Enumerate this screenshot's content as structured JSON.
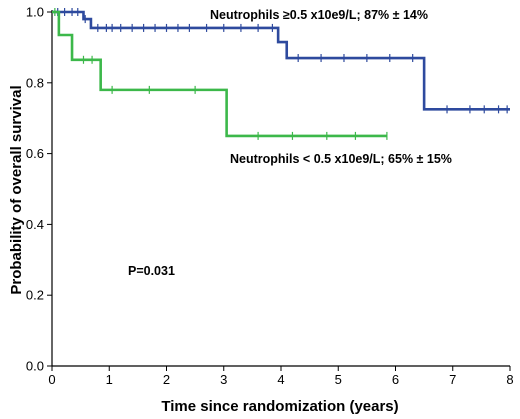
{
  "chart_data": {
    "type": "line",
    "step": true,
    "xlabel": "Time since randomization (years)",
    "ylabel": "Probability of overall survival",
    "xlim": [
      0,
      8
    ],
    "ylim": [
      0,
      1.0
    ],
    "x_ticks": [
      "0",
      "1",
      "2",
      "3",
      "4",
      "5",
      "6",
      "7",
      "8"
    ],
    "y_ticks": [
      "0.0",
      "0.2",
      "0.4",
      "0.6",
      "0.8",
      "1.0"
    ],
    "grid": false,
    "legend": "none",
    "series": [
      {
        "name": "Neutrophils ≥0.5 x10e9/L; 87% ± 14%",
        "color": "#2e4a9e",
        "steps": [
          [
            0,
            1.0
          ],
          [
            0.55,
            0.98
          ],
          [
            0.68,
            0.955
          ],
          [
            3.95,
            0.915
          ],
          [
            4.1,
            0.87
          ],
          [
            6.5,
            0.725
          ],
          [
            8.0,
            0.725
          ]
        ],
        "censored": [
          [
            0.1,
            1.0
          ],
          [
            0.22,
            1.0
          ],
          [
            0.35,
            1.0
          ],
          [
            0.45,
            1.0
          ],
          [
            0.58,
            0.98
          ],
          [
            0.8,
            0.955
          ],
          [
            0.95,
            0.955
          ],
          [
            1.05,
            0.955
          ],
          [
            1.2,
            0.955
          ],
          [
            1.4,
            0.955
          ],
          [
            1.6,
            0.955
          ],
          [
            1.8,
            0.955
          ],
          [
            2.0,
            0.955
          ],
          [
            2.2,
            0.955
          ],
          [
            2.4,
            0.955
          ],
          [
            2.7,
            0.955
          ],
          [
            3.0,
            0.955
          ],
          [
            3.3,
            0.955
          ],
          [
            3.6,
            0.955
          ],
          [
            3.85,
            0.955
          ],
          [
            4.3,
            0.87
          ],
          [
            4.7,
            0.87
          ],
          [
            5.1,
            0.87
          ],
          [
            5.5,
            0.87
          ],
          [
            5.9,
            0.87
          ],
          [
            6.3,
            0.87
          ],
          [
            6.9,
            0.725
          ],
          [
            7.3,
            0.725
          ],
          [
            7.55,
            0.725
          ],
          [
            7.8,
            0.725
          ],
          [
            7.95,
            0.725
          ]
        ]
      },
      {
        "name": "Neutrophils < 0.5 x10e9/L; 65% ± 15%",
        "color": "#3cb84a",
        "steps": [
          [
            0,
            1.0
          ],
          [
            0.12,
            0.935
          ],
          [
            0.35,
            0.865
          ],
          [
            0.85,
            0.78
          ],
          [
            3.05,
            0.65
          ],
          [
            5.85,
            0.65
          ]
        ],
        "censored": [
          [
            0.05,
            1.0
          ],
          [
            0.55,
            0.865
          ],
          [
            0.7,
            0.865
          ],
          [
            1.05,
            0.78
          ],
          [
            1.7,
            0.78
          ],
          [
            2.5,
            0.78
          ],
          [
            3.6,
            0.65
          ],
          [
            4.2,
            0.65
          ],
          [
            4.8,
            0.65
          ],
          [
            5.3,
            0.65
          ],
          [
            5.85,
            0.65
          ]
        ]
      }
    ],
    "annotations": {
      "upper": "Neutrophils ≥0.5 x10e9/L; 87% ± 14%",
      "lower": "Neutrophils < 0.5 x10e9/L; 65% ± 15%",
      "pvalue": "P=0.031"
    }
  }
}
